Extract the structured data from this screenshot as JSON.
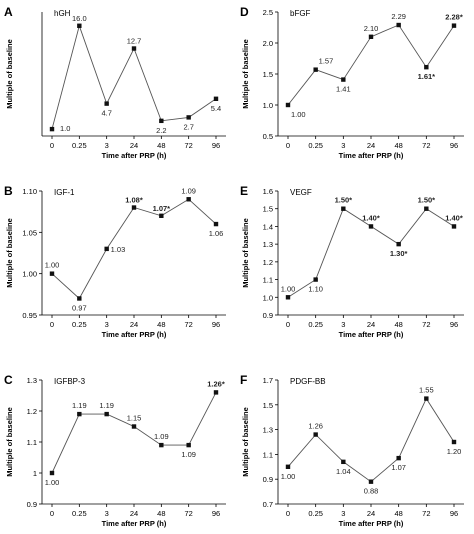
{
  "x_categories": [
    "0",
    "0.25",
    "3",
    "24",
    "48",
    "72",
    "96"
  ],
  "chart_data": [
    {
      "type": "line",
      "panel_letter": "A",
      "title": "hGH",
      "xlabel": "Time after PRP (h)",
      "ylabel": "Multiple of baseline",
      "categories": [
        "0",
        "0.25",
        "3",
        "24",
        "48",
        "72",
        "96"
      ],
      "values": [
        1.0,
        16.0,
        4.7,
        12.7,
        2.2,
        2.7,
        5.4
      ],
      "data_labels": [
        "1.0",
        "16.0",
        "4.7",
        "12.7",
        "2.2",
        "2.7",
        "5.4"
      ],
      "label_bold": [
        false,
        false,
        false,
        false,
        false,
        false,
        false
      ],
      "ylim": [
        0,
        18
      ],
      "yticks": [],
      "grid": false
    },
    {
      "type": "line",
      "panel_letter": "D",
      "title": "bFGF",
      "xlabel": "Time after PRP (h)",
      "ylabel": "Multiple of baseline",
      "categories": [
        "0",
        "0.25",
        "3",
        "24",
        "48",
        "72",
        "96"
      ],
      "values": [
        1.0,
        1.57,
        1.41,
        2.1,
        2.29,
        1.61,
        2.28
      ],
      "data_labels": [
        "1.00",
        "1.57",
        "1.41",
        "2.10",
        "2.29",
        "1.61*",
        "2.28*"
      ],
      "label_bold": [
        false,
        false,
        false,
        false,
        false,
        true,
        true
      ],
      "ylim": [
        0.5,
        2.5
      ],
      "yticks": [
        "0.5",
        "1.0",
        "1.5",
        "2.0",
        "2.5"
      ],
      "grid": false
    },
    {
      "type": "line",
      "panel_letter": "B",
      "title": "IGF-1",
      "xlabel": "Time after PRP (h)",
      "ylabel": "Multiple of baseline",
      "categories": [
        "0",
        "0.25",
        "3",
        "24",
        "48",
        "72",
        "96"
      ],
      "values": [
        1.0,
        0.97,
        1.03,
        1.08,
        1.07,
        1.09,
        1.06
      ],
      "data_labels": [
        "1.00",
        "0.97",
        "1.03",
        "1.08*",
        "1.07*",
        "1.09",
        "1.06"
      ],
      "label_bold": [
        false,
        false,
        false,
        true,
        true,
        false,
        false
      ],
      "ylim": [
        0.95,
        1.1
      ],
      "yticks": [
        "0.95",
        "1.00",
        "1.05",
        "1.10"
      ],
      "grid": false
    },
    {
      "type": "line",
      "panel_letter": "E",
      "title": "VEGF",
      "xlabel": "Time after PRP (h)",
      "ylabel": "Multiple of baseline",
      "categories": [
        "0",
        "0.25",
        "3",
        "24",
        "48",
        "72",
        "96"
      ],
      "values": [
        1.0,
        1.1,
        1.5,
        1.4,
        1.3,
        1.5,
        1.4
      ],
      "data_labels": [
        "1.00",
        "1.10",
        "1.50*",
        "1.40*",
        "1.30*",
        "1.50*",
        "1.40*"
      ],
      "label_bold": [
        false,
        false,
        true,
        true,
        true,
        true,
        true
      ],
      "ylim": [
        0.9,
        1.6
      ],
      "yticks": [
        "0.9",
        "1.0",
        "1.1",
        "1.2",
        "1.3",
        "1.4",
        "1.5",
        "1.6"
      ],
      "grid": false
    },
    {
      "type": "line",
      "panel_letter": "C",
      "title": "IGFBP-3",
      "xlabel": "Time after PRP (h)",
      "ylabel": "Multiple of baseline",
      "categories": [
        "0",
        "0.25",
        "3",
        "24",
        "48",
        "72",
        "96"
      ],
      "values": [
        1.0,
        1.19,
        1.19,
        1.15,
        1.09,
        1.09,
        1.26
      ],
      "data_labels": [
        "1.00",
        "1.19",
        "1.19",
        "1.15",
        "1.09",
        "1.09",
        "1.26*"
      ],
      "label_bold": [
        false,
        false,
        false,
        false,
        false,
        false,
        true
      ],
      "ylim": [
        0.9,
        1.3
      ],
      "yticks": [
        "0.9",
        "1",
        "1.1",
        "1.2",
        "1.3"
      ],
      "grid": false
    },
    {
      "type": "line",
      "panel_letter": "F",
      "title": "PDGF-BB",
      "xlabel": "Time after PRP (h)",
      "ylabel": "Multiple of baseline",
      "categories": [
        "0",
        "0.25",
        "3",
        "24",
        "48",
        "72",
        "96"
      ],
      "values": [
        1.0,
        1.26,
        1.04,
        0.88,
        1.07,
        1.55,
        1.2
      ],
      "data_labels": [
        "1.00",
        "1.26",
        "1.04",
        "0.88",
        "1.07",
        "1.55",
        "1.20"
      ],
      "label_bold": [
        false,
        false,
        false,
        false,
        false,
        false,
        false
      ],
      "ylim": [
        0.7,
        1.7
      ],
      "yticks": [
        "0.7",
        "0.9",
        "1.1",
        "1.3",
        "1.5",
        "1.7"
      ],
      "grid": false
    }
  ]
}
